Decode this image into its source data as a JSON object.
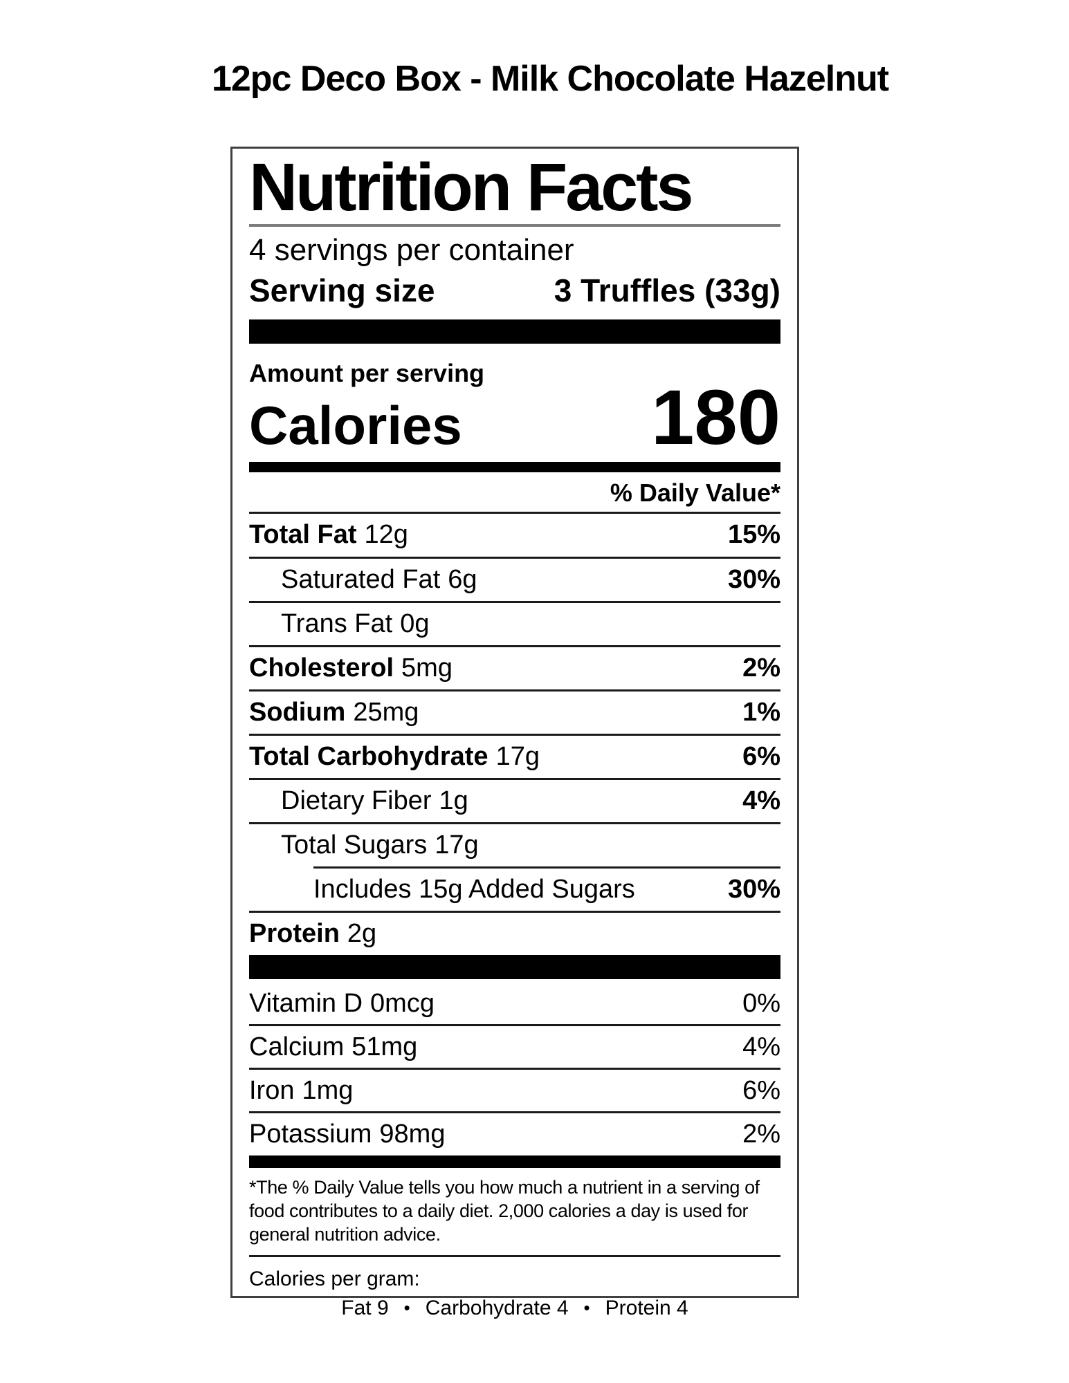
{
  "page": {
    "title": "12pc Deco Box - Milk Chocolate Hazelnut"
  },
  "label": {
    "title": "Nutrition Facts",
    "servings_per_container": "4 servings per container",
    "serving_size_label": "Serving size",
    "serving_size_value": "3 Truffles (33g)",
    "amount_per_serving": "Amount per serving",
    "calories_label": "Calories",
    "calories_value": "180",
    "daily_value_header": "% Daily Value*",
    "nutrients": [
      {
        "name": "Total Fat",
        "amount": "12g",
        "dv": "15%"
      },
      {
        "name": "Saturated Fat",
        "amount": "6g",
        "dv": "30%"
      },
      {
        "name": "Trans Fat",
        "amount": "0g",
        "dv": ""
      },
      {
        "name": "Cholesterol",
        "amount": "5mg",
        "dv": "2%"
      },
      {
        "name": "Sodium",
        "amount": "25mg",
        "dv": "1%"
      },
      {
        "name": "Total Carbohydrate",
        "amount": "17g",
        "dv": "6%"
      },
      {
        "name": "Dietary Fiber",
        "amount": "1g",
        "dv": "4%"
      },
      {
        "name": "Total Sugars",
        "amount": "17g",
        "dv": ""
      },
      {
        "name": "Includes 15g Added Sugars",
        "amount": "",
        "dv": "30%"
      },
      {
        "name": "Protein",
        "amount": "2g",
        "dv": ""
      }
    ],
    "vitamins": [
      {
        "name": "Vitamin D",
        "amount": "0mcg",
        "dv": "0%"
      },
      {
        "name": "Calcium",
        "amount": "51mg",
        "dv": "4%"
      },
      {
        "name": "Iron",
        "amount": "1mg",
        "dv": "6%"
      },
      {
        "name": "Potassium",
        "amount": "98mg",
        "dv": "2%"
      }
    ],
    "footnote": "*The % Daily Value tells you how much a nutrient in a serving of food contributes to a daily diet. 2,000 calories a day is used for general nutrition advice.",
    "calories_per_gram": {
      "label": "Calories per gram:",
      "items": [
        "Fat 9",
        "Carbohydrate 4",
        "Protein 4"
      ],
      "separator": "•"
    }
  },
  "colors": {
    "text": "#000000",
    "title_underline_gray": "#7c7c7c",
    "rule_black": "#1a1a1a",
    "border_gray": "#404040",
    "background": "#ffffff"
  }
}
